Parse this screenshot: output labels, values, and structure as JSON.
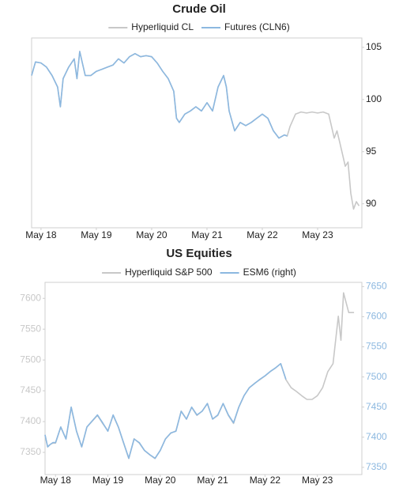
{
  "chart_data": [
    {
      "type": "line",
      "title": "Crude Oil",
      "y_axis_position": "right",
      "x": [
        17.83,
        17.9,
        18.0,
        18.1,
        18.2,
        18.3,
        18.35,
        18.4,
        18.5,
        18.6,
        18.65,
        18.7,
        18.8,
        18.9,
        19.0,
        19.1,
        19.2,
        19.3,
        19.4,
        19.5,
        19.6,
        19.7,
        19.8,
        19.9,
        20.0,
        20.1,
        20.2,
        20.3,
        20.4,
        20.45,
        20.5,
        20.6,
        20.7,
        20.8,
        20.9,
        21.0,
        21.1,
        21.2,
        21.3,
        21.35,
        21.4,
        21.5,
        21.6,
        21.7,
        21.8,
        21.9,
        22.0,
        22.1,
        22.2,
        22.3,
        22.4,
        22.45,
        22.5,
        22.6,
        22.7,
        22.8,
        22.9,
        23.0,
        23.1,
        23.2,
        23.3,
        23.35,
        23.4,
        23.5,
        23.55,
        23.6,
        23.65,
        23.7,
        23.75
      ],
      "xlim": [
        17.83,
        23.8
      ],
      "xticks": [
        {
          "value": 18,
          "label": "May 18"
        },
        {
          "value": 19,
          "label": "May 19"
        },
        {
          "value": 20,
          "label": "May 20"
        },
        {
          "value": 21,
          "label": "May 21"
        },
        {
          "value": 22,
          "label": "May 22"
        },
        {
          "value": 23,
          "label": "May 23"
        }
      ],
      "ylim": [
        87.7,
        105.9
      ],
      "yticks": [
        90,
        95,
        100,
        105
      ],
      "series": [
        {
          "name": "Hyperliquid CL",
          "color": "#c8c8c8",
          "values": [
            102.3,
            103.6,
            103.5,
            103.1,
            102.3,
            101.2,
            99.3,
            102,
            103.1,
            103.9,
            102,
            104.6,
            102.3,
            102.3,
            102.7,
            102.9,
            103.1,
            103.3,
            103.9,
            103.5,
            104.1,
            104.4,
            104.1,
            104.2,
            104.1,
            103.5,
            102.7,
            102,
            100.8,
            98.2,
            97.8,
            98.6,
            98.9,
            99.3,
            98.9,
            99.7,
            98.9,
            101.2,
            102.3,
            101.2,
            98.9,
            97,
            97.8,
            97.5,
            97.8,
            98.2,
            98.6,
            98.2,
            97,
            96.3,
            96.6,
            96.5,
            97.4,
            98.6,
            98.8,
            98.7,
            98.8,
            98.7,
            98.8,
            98.6,
            96.3,
            97,
            95.9,
            93.6,
            94,
            91,
            89.5,
            90.2,
            89.8
          ]
        },
        {
          "name": "Futures (CLN6)",
          "color": "#8cb8e0",
          "values": [
            102.3,
            103.6,
            103.5,
            103.1,
            102.3,
            101.2,
            99.3,
            102,
            103.1,
            103.9,
            102,
            104.6,
            102.3,
            102.3,
            102.7,
            102.9,
            103.1,
            103.3,
            103.9,
            103.5,
            104.1,
            104.4,
            104.1,
            104.2,
            104.1,
            103.5,
            102.7,
            102,
            100.8,
            98.2,
            97.8,
            98.6,
            98.9,
            99.3,
            98.9,
            99.7,
            98.9,
            101.2,
            102.3,
            101.2,
            98.9,
            97,
            97.8,
            97.5,
            97.8,
            98.2,
            98.6,
            98.2,
            97,
            96.3,
            96.6,
            96.5,
            null,
            null,
            null,
            null,
            null,
            null,
            null,
            null,
            null,
            null,
            null,
            null,
            null,
            null,
            null,
            null,
            null
          ]
        }
      ]
    },
    {
      "type": "line",
      "title": "US Equities",
      "x": [
        17.8,
        17.85,
        17.9,
        17.95,
        18.0,
        18.1,
        18.2,
        18.3,
        18.4,
        18.5,
        18.6,
        18.8,
        18.9,
        19.0,
        19.1,
        19.2,
        19.3,
        19.4,
        19.5,
        19.6,
        19.7,
        19.8,
        19.9,
        20.0,
        20.1,
        20.2,
        20.3,
        20.4,
        20.5,
        20.6,
        20.7,
        20.8,
        20.9,
        21.0,
        21.1,
        21.2,
        21.3,
        21.4,
        21.5,
        21.6,
        21.7,
        21.8,
        21.9,
        22.0,
        22.1,
        22.2,
        22.3,
        22.4,
        22.5,
        22.6,
        22.7,
        22.8,
        22.9,
        23.0,
        23.1,
        23.2,
        23.3,
        23.4,
        23.45,
        23.5,
        23.6,
        23.7
      ],
      "xlim": [
        17.8,
        23.85
      ],
      "xticks": [
        {
          "value": 18,
          "label": "May 18"
        },
        {
          "value": 19,
          "label": "May 19"
        },
        {
          "value": 20,
          "label": "May 20"
        },
        {
          "value": 21,
          "label": "May 21"
        },
        {
          "value": 22,
          "label": "May 22"
        },
        {
          "value": 23,
          "label": "May 23"
        }
      ],
      "ylim": [
        7314,
        7626
      ],
      "yticks": [
        7350,
        7400,
        7450,
        7500,
        7550,
        7600
      ],
      "y2lim": [
        7338,
        7657
      ],
      "y2ticks": [
        7350,
        7400,
        7450,
        7500,
        7550,
        7600,
        7650
      ],
      "series": [
        {
          "name": "Hyperliquid S&P 500",
          "color": "#c8c8c8",
          "values": [
            7378,
            7359,
            7363,
            7365,
            7365,
            7391,
            7372,
            7423,
            7385,
            7359,
            7391,
            7410,
            7397,
            7385,
            7410,
            7391,
            7365,
            7340,
            7372,
            7365,
            7353,
            7346,
            7340,
            7353,
            7372,
            7381,
            7385,
            7417,
            7404,
            7423,
            7410,
            7417,
            7429,
            7404,
            7410,
            7429,
            7410,
            7397,
            7423,
            7442,
            7455,
            7462,
            7468,
            7474,
            7481,
            7487,
            7494,
            7468,
            7455,
            7449,
            7442,
            7436,
            7436,
            7442,
            7455,
            7481,
            7494,
            7571,
            7532,
            7609,
            7577,
            7577
          ]
        },
        {
          "name": "ESM6 (right)",
          "color": "#8cb8e0",
          "axis": "y2",
          "values": [
            7404,
            7384,
            7388,
            7391,
            7391,
            7417,
            7397,
            7450,
            7410,
            7384,
            7417,
            7437,
            7424,
            7410,
            7437,
            7417,
            7391,
            7365,
            7397,
            7391,
            7378,
            7371,
            7365,
            7378,
            7397,
            7407,
            7410,
            7443,
            7430,
            7450,
            7437,
            7443,
            7456,
            7430,
            7437,
            7456,
            7437,
            7424,
            7450,
            7469,
            7482,
            7489,
            7496,
            7502,
            7509,
            7515,
            7522,
            7496,
            null,
            null,
            null,
            null,
            null,
            null,
            null,
            null,
            null,
            null,
            null,
            null,
            null,
            null
          ]
        }
      ]
    }
  ]
}
